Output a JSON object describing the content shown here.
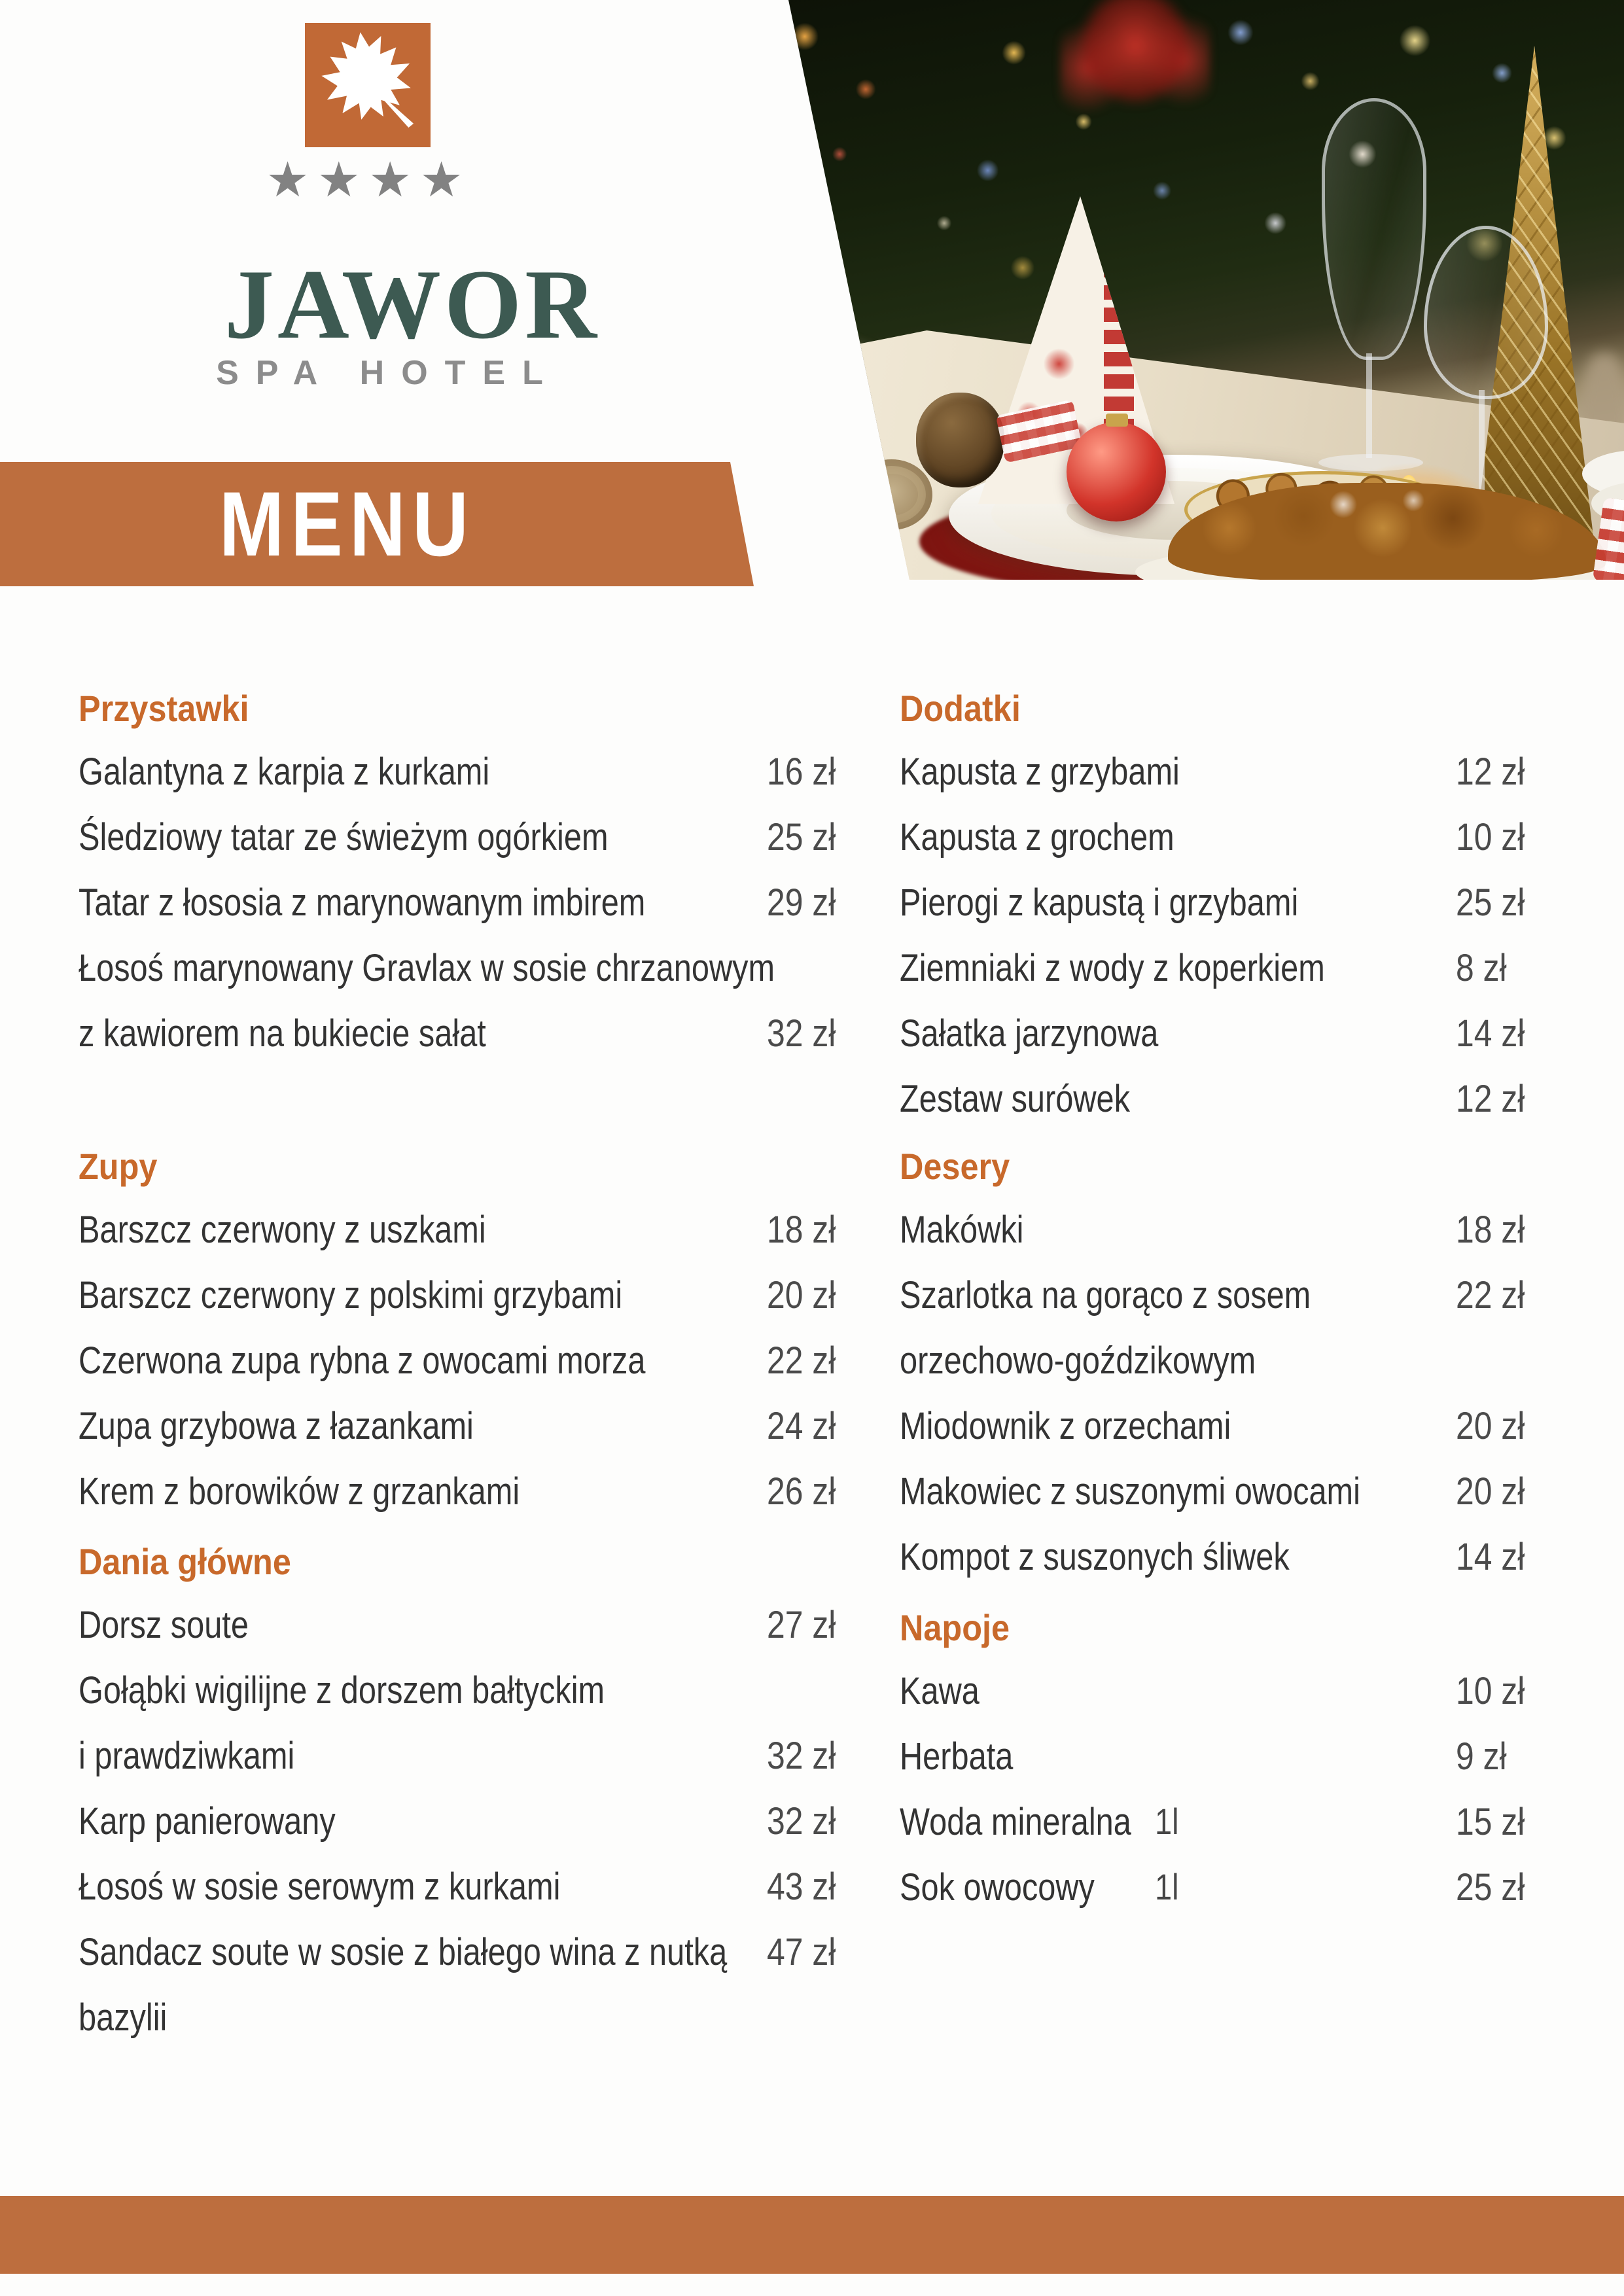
{
  "brand": {
    "name": "JAWOR",
    "subtitle": "SPA HOTEL",
    "stars": "★★★★",
    "logo_icon": "maple-leaf-icon"
  },
  "banner": {
    "title": "MENU"
  },
  "colors": {
    "accent_orange": "#bd6e3e",
    "logo_orange": "#c16936",
    "section_header_orange": "#c8692b",
    "brand_teal": "#3d5a52",
    "star_gray": "#828282",
    "item_text": "#333333",
    "price_text": "#4b4b4b"
  },
  "menu": {
    "left": [
      {
        "title": "Przystawki",
        "items": [
          {
            "lines": [
              "Galantyna z karpia z kurkami"
            ],
            "price": "16 zł",
            "price_line": 0
          },
          {
            "lines": [
              "Śledziowy tatar ze świeżym ogórkiem"
            ],
            "price": "25 zł",
            "price_line": 0
          },
          {
            "lines": [
              "Tatar z łososia z marynowanym imbirem"
            ],
            "price": "29 zł",
            "price_line": 0
          },
          {
            "lines": [
              "Łosoś marynowany Gravlax w sosie chrzanowym",
              "z kawiorem na bukiecie sałat"
            ],
            "price": "32 zł",
            "price_line": 1
          }
        ]
      },
      {
        "title": "Zupy",
        "items": [
          {
            "lines": [
              "Barszcz czerwony z uszkami"
            ],
            "price": "18 zł",
            "price_line": 0
          },
          {
            "lines": [
              "Barszcz czerwony z polskimi grzybami"
            ],
            "price": "20 zł",
            "price_line": 0
          },
          {
            "lines": [
              "Czerwona zupa rybna z owocami morza"
            ],
            "price": "22 zł",
            "price_line": 0
          },
          {
            "lines": [
              "Zupa grzybowa z łazankami"
            ],
            "price": "24 zł",
            "price_line": 0
          },
          {
            "lines": [
              "Krem z borowików z grzankami"
            ],
            "price": "26 zł",
            "price_line": 0
          }
        ]
      },
      {
        "title": "Dania główne",
        "items": [
          {
            "lines": [
              "Dorsz soute"
            ],
            "price": "27 zł",
            "price_line": 0
          },
          {
            "lines": [
              "Gołąbki wigilijne z dorszem bałtyckim",
              "i prawdziwkami"
            ],
            "price": "32 zł",
            "price_line": 1
          },
          {
            "lines": [
              "Karp panierowany"
            ],
            "price": "32 zł",
            "price_line": 0
          },
          {
            "lines": [
              "Łosoś w sosie serowym z kurkami"
            ],
            "price": "43 zł",
            "price_line": 0
          },
          {
            "lines": [
              "Sandacz soute w sosie z białego wina z nutką",
              "bazylii"
            ],
            "price": "47 zł",
            "price_line": 0
          }
        ]
      }
    ],
    "right": [
      {
        "title": "Dodatki",
        "items": [
          {
            "lines": [
              "Kapusta z grzybami"
            ],
            "price": "12 zł",
            "price_line": 0
          },
          {
            "lines": [
              "Kapusta z grochem"
            ],
            "price": "10 zł",
            "price_line": 0
          },
          {
            "lines": [
              "Pierogi z kapustą i grzybami"
            ],
            "price": "25 zł",
            "price_line": 0
          },
          {
            "lines": [
              "Ziemniaki z wody z koperkiem"
            ],
            "price": "8 zł",
            "price_line": 0
          },
          {
            "lines": [
              "Sałatka jarzynowa"
            ],
            "price": "14 zł",
            "price_line": 0
          },
          {
            "lines": [
              "Zestaw surówek"
            ],
            "price": "12 zł",
            "price_line": 0
          }
        ]
      },
      {
        "title": "Desery",
        "items": [
          {
            "lines": [
              "Makówki"
            ],
            "price": "18 zł",
            "price_line": 0
          },
          {
            "lines": [
              "Szarlotka na gorąco z sosem",
              "orzechowo-goździkowym"
            ],
            "price": "22 zł",
            "price_line": 0
          },
          {
            "lines": [
              "Miodownik z orzechami"
            ],
            "price": "20 zł",
            "price_line": 0
          },
          {
            "lines": [
              "Makowiec z suszonymi owocami"
            ],
            "price": "20 zł",
            "price_line": 0
          },
          {
            "lines": [
              "Kompot z suszonych śliwek"
            ],
            "price": "14 zł",
            "price_line": 0
          }
        ]
      },
      {
        "title": "Napoje",
        "items": [
          {
            "lines": [
              "Kawa"
            ],
            "price": "10 zł",
            "price_line": 0
          },
          {
            "lines": [
              "Herbata"
            ],
            "price": "9 zł",
            "price_line": 0
          },
          {
            "lines": [
              "Woda mineralna"
            ],
            "unit": "1l",
            "price": "15 zł",
            "price_line": 0
          },
          {
            "lines": [
              "Sok owocowy"
            ],
            "unit": "1l",
            "price": "25 zł",
            "price_line": 0
          }
        ]
      }
    ]
  }
}
